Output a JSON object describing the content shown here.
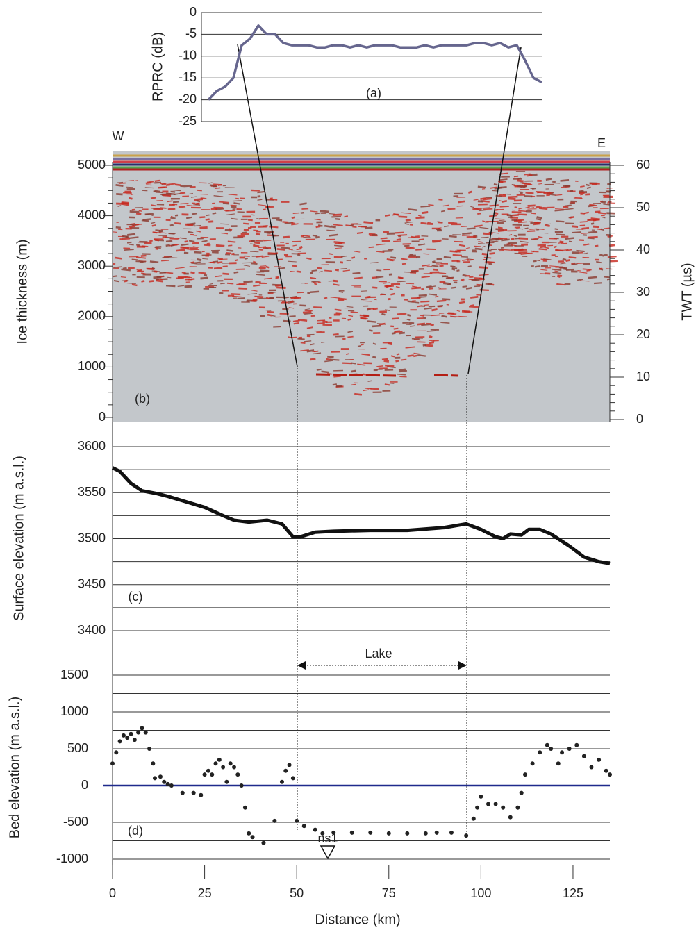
{
  "chart_data": [
    {
      "type": "line",
      "ylabel": "RPRC (dB)",
      "ylim": [
        -25,
        0
      ],
      "yticks": [
        0,
        -5,
        -10,
        -15,
        -20,
        -25
      ],
      "grid": true,
      "color": "#66668e",
      "annotations": [
        "(a)"
      ],
      "values": [
        -20,
        -18,
        -17,
        -15,
        -7.5,
        -6,
        -3,
        -5,
        -5,
        -7,
        -7.5,
        -7.5,
        -7.5,
        -8,
        -8,
        -7.5,
        -7.5,
        -8,
        -7.5,
        -8,
        -7.5,
        -7.5,
        -7.5,
        -8,
        -8,
        -8,
        -7.5,
        -8,
        -7.5,
        -7.5,
        -7.5,
        -7.5,
        -7,
        -7,
        -7.5,
        -7,
        -8,
        -7.5,
        -11,
        -15,
        -16
      ]
    },
    {
      "type": "image",
      "ylabel": "Ice thickness (m)",
      "y2label": "TWT (µs)",
      "ylim": [
        0,
        5000
      ],
      "yticks": [
        0,
        1000,
        2000,
        3000,
        4000,
        5000
      ],
      "y2lim": [
        0,
        60
      ],
      "y2ticks": [
        0,
        10,
        20,
        30,
        40,
        50,
        60
      ],
      "grid": false,
      "annotations": [
        "W",
        "E",
        "(b)"
      ]
    },
    {
      "type": "line",
      "ylabel": "Surface elevation (m a.s.l.)",
      "xlim": [
        0,
        135
      ],
      "ylim": [
        3400,
        3600
      ],
      "yticks": [
        3600,
        3550,
        3500,
        3450,
        3400
      ],
      "minor_yticks": [
        3575,
        3525,
        3475,
        3425
      ],
      "grid": true,
      "color": "#111111",
      "annotations": [
        "(c)"
      ],
      "x": [
        0,
        2,
        5,
        8,
        12,
        15,
        20,
        25,
        30,
        33,
        37,
        42,
        46,
        49,
        51,
        55,
        60,
        70,
        80,
        90,
        96,
        100,
        104,
        106,
        108,
        111,
        113,
        116,
        119,
        124,
        128,
        132,
        135
      ],
      "values": [
        3577,
        3573,
        3560,
        3552,
        3549,
        3546,
        3540,
        3534,
        3525,
        3520,
        3518,
        3520,
        3516,
        3502,
        3502,
        3507,
        3508,
        3509,
        3509,
        3512,
        3516,
        3510,
        3502,
        3500,
        3505,
        3504,
        3510,
        3510,
        3505,
        3492,
        3480,
        3475,
        3473
      ]
    },
    {
      "type": "scatter",
      "ylabel": "Bed elevation (m a.s.l.)",
      "xlabel": "Distance (km)",
      "xlim": [
        0,
        135
      ],
      "xticks": [
        0,
        25,
        50,
        75,
        100,
        125
      ],
      "ylim": [
        -1000,
        1500
      ],
      "yticks": [
        1500,
        1000,
        500,
        0,
        -500,
        -1000
      ],
      "minor_yticks": [
        1250,
        750,
        250,
        -250,
        -750
      ],
      "grid": true,
      "color": "#222222",
      "zero_line_color": "#1f2a8c",
      "annotations": [
        "Lake",
        "ns1",
        "(d)"
      ],
      "x": [
        0,
        1,
        2,
        3,
        4,
        5,
        6,
        7,
        8,
        9,
        10,
        11,
        11.5,
        13,
        14,
        15,
        16,
        19,
        22,
        24,
        25,
        26,
        27,
        28,
        29,
        30,
        31,
        32,
        33,
        34,
        35,
        36,
        37,
        38,
        41,
        44,
        46,
        47,
        48,
        49,
        50,
        52,
        55,
        57,
        60,
        65,
        70,
        75,
        80,
        85,
        88,
        92,
        96,
        98,
        99,
        100,
        102,
        104,
        106,
        108,
        110,
        111,
        112,
        114,
        116,
        118,
        119,
        121,
        122,
        124,
        126,
        128,
        130,
        132,
        134,
        135
      ],
      "values": [
        300,
        450,
        600,
        680,
        650,
        700,
        620,
        720,
        780,
        720,
        500,
        300,
        100,
        120,
        50,
        20,
        0,
        -100,
        -100,
        -130,
        150,
        200,
        150,
        300,
        350,
        250,
        50,
        300,
        250,
        150,
        0,
        -300,
        -650,
        -700,
        -780,
        -480,
        50,
        200,
        280,
        100,
        -480,
        -550,
        -600,
        -650,
        -640,
        -640,
        -640,
        -650,
        -650,
        -650,
        -640,
        -640,
        -680,
        -450,
        -300,
        -150,
        -250,
        -250,
        -300,
        -430,
        -300,
        -100,
        150,
        300,
        450,
        550,
        500,
        300,
        450,
        500,
        550,
        400,
        250,
        350,
        200,
        150
      ]
    }
  ]
}
